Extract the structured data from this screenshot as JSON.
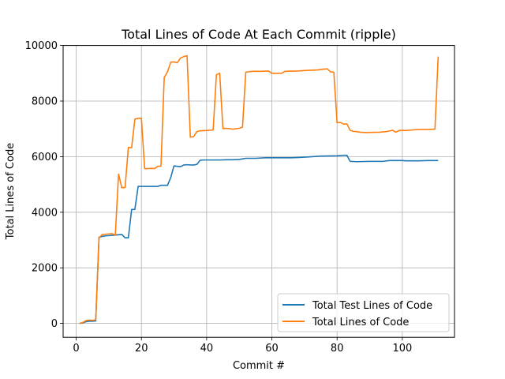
{
  "chart_data": {
    "type": "line",
    "title": "Total Lines of Code At Each Commit (ripple)",
    "xlabel": "Commit #",
    "ylabel": "Total Lines of Code",
    "xlim": [
      -4,
      116
    ],
    "ylim": [
      -500,
      10000
    ],
    "xticks": [
      0,
      20,
      40,
      60,
      80,
      100
    ],
    "yticks": [
      0,
      2000,
      4000,
      6000,
      8000,
      10000
    ],
    "grid": true,
    "legend_position": "lower-right",
    "series": [
      {
        "name": "Total Test Lines of Code",
        "color": "#1f77b4",
        "points": [
          [
            1,
            0
          ],
          [
            2,
            20
          ],
          [
            3,
            60
          ],
          [
            4,
            80
          ],
          [
            5,
            80
          ],
          [
            6,
            90
          ],
          [
            7,
            3100
          ],
          [
            8,
            3130
          ],
          [
            9,
            3150
          ],
          [
            10,
            3160
          ],
          [
            11,
            3170
          ],
          [
            12,
            3180
          ],
          [
            13,
            3190
          ],
          [
            14,
            3200
          ],
          [
            15,
            3080
          ],
          [
            16,
            3080
          ],
          [
            17,
            4100
          ],
          [
            18,
            4100
          ],
          [
            19,
            4930
          ],
          [
            20,
            4930
          ],
          [
            21,
            4930
          ],
          [
            22,
            4930
          ],
          [
            23,
            4930
          ],
          [
            24,
            4930
          ],
          [
            25,
            4930
          ],
          [
            26,
            4970
          ],
          [
            27,
            4970
          ],
          [
            28,
            4970
          ],
          [
            29,
            5250
          ],
          [
            30,
            5670
          ],
          [
            31,
            5650
          ],
          [
            32,
            5640
          ],
          [
            33,
            5700
          ],
          [
            34,
            5710
          ],
          [
            35,
            5700
          ],
          [
            36,
            5700
          ],
          [
            37,
            5720
          ],
          [
            38,
            5870
          ],
          [
            39,
            5880
          ],
          [
            40,
            5880
          ],
          [
            42,
            5880
          ],
          [
            44,
            5880
          ],
          [
            46,
            5890
          ],
          [
            48,
            5890
          ],
          [
            50,
            5900
          ],
          [
            52,
            5940
          ],
          [
            55,
            5940
          ],
          [
            58,
            5960
          ],
          [
            62,
            5960
          ],
          [
            66,
            5960
          ],
          [
            70,
            5980
          ],
          [
            75,
            6020
          ],
          [
            80,
            6030
          ],
          [
            82,
            6050
          ],
          [
            83,
            6050
          ],
          [
            84,
            5830
          ],
          [
            86,
            5820
          ],
          [
            90,
            5830
          ],
          [
            94,
            5830
          ],
          [
            96,
            5860
          ],
          [
            100,
            5860
          ],
          [
            101,
            5850
          ],
          [
            105,
            5850
          ],
          [
            108,
            5860
          ],
          [
            111,
            5860
          ]
        ]
      },
      {
        "name": "Total Lines of Code",
        "color": "#ff7f0e",
        "points": [
          [
            1,
            0
          ],
          [
            2,
            30
          ],
          [
            3,
            100
          ],
          [
            4,
            120
          ],
          [
            5,
            110
          ],
          [
            6,
            130
          ],
          [
            7,
            3070
          ],
          [
            8,
            3200
          ],
          [
            9,
            3210
          ],
          [
            10,
            3220
          ],
          [
            11,
            3230
          ],
          [
            12,
            3180
          ],
          [
            13,
            5370
          ],
          [
            14,
            4880
          ],
          [
            15,
            4890
          ],
          [
            16,
            6330
          ],
          [
            17,
            6320
          ],
          [
            18,
            7350
          ],
          [
            19,
            7380
          ],
          [
            20,
            7380
          ],
          [
            21,
            5570
          ],
          [
            22,
            5570
          ],
          [
            23,
            5580
          ],
          [
            24,
            5570
          ],
          [
            25,
            5650
          ],
          [
            26,
            5660
          ],
          [
            27,
            8850
          ],
          [
            28,
            9050
          ],
          [
            29,
            9400
          ],
          [
            30,
            9410
          ],
          [
            31,
            9380
          ],
          [
            32,
            9550
          ],
          [
            33,
            9600
          ],
          [
            34,
            9630
          ],
          [
            35,
            6700
          ],
          [
            36,
            6720
          ],
          [
            37,
            6900
          ],
          [
            38,
            6930
          ],
          [
            40,
            6940
          ],
          [
            42,
            6960
          ],
          [
            43,
            8950
          ],
          [
            44,
            9000
          ],
          [
            45,
            7010
          ],
          [
            46,
            7020
          ],
          [
            48,
            6990
          ],
          [
            50,
            7020
          ],
          [
            51,
            7060
          ],
          [
            52,
            9040
          ],
          [
            54,
            9070
          ],
          [
            57,
            9070
          ],
          [
            59,
            9080
          ],
          [
            60,
            9000
          ],
          [
            63,
            9000
          ],
          [
            64,
            9070
          ],
          [
            68,
            9080
          ],
          [
            70,
            9100
          ],
          [
            74,
            9120
          ],
          [
            76,
            9150
          ],
          [
            77,
            9160
          ],
          [
            78,
            9050
          ],
          [
            79,
            9040
          ],
          [
            80,
            7220
          ],
          [
            81,
            7230
          ],
          [
            82,
            7170
          ],
          [
            83,
            7180
          ],
          [
            84,
            6950
          ],
          [
            85,
            6910
          ],
          [
            86,
            6900
          ],
          [
            87,
            6880
          ],
          [
            89,
            6870
          ],
          [
            93,
            6880
          ],
          [
            95,
            6900
          ],
          [
            96,
            6920
          ],
          [
            97,
            6950
          ],
          [
            98,
            6880
          ],
          [
            99,
            6940
          ],
          [
            100,
            6950
          ],
          [
            101,
            6940
          ],
          [
            103,
            6960
          ],
          [
            105,
            6980
          ],
          [
            108,
            6980
          ],
          [
            110,
            6990
          ],
          [
            111,
            9600
          ]
        ]
      }
    ]
  }
}
